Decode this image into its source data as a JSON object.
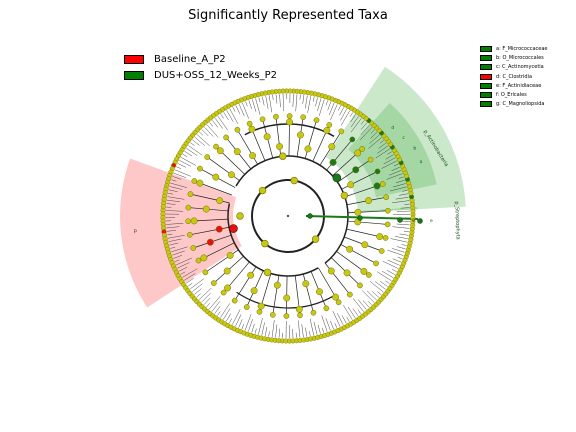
{
  "title": "Significantly Represented Taxa",
  "legend": [
    {
      "label": "Baseline_A_P2",
      "color": "#ff0000"
    },
    {
      "label": "DUS+OSS_12_Weeks_P2",
      "color": "#008000"
    }
  ],
  "clade_legend": [
    {
      "label": "a: F_Micrococcaceae",
      "color": "#008000"
    },
    {
      "label": "b: O_Micrococcales",
      "color": "#008000"
    },
    {
      "label": "c: C_Actinomycetia",
      "color": "#008000"
    },
    {
      "label": "d: C_Clostridia",
      "color": "#ff0000"
    },
    {
      "label": "e: F_Actinidiaceae",
      "color": "#008000"
    },
    {
      "label": "f: O_Ericales",
      "color": "#008000"
    },
    {
      "label": "g: C_Magnoliopsida",
      "color": "#008000"
    }
  ],
  "clade_labels": {
    "actinobacteria": "p_Actinobacteria",
    "streptophyta": "p_Streptophyta",
    "firmicutes": "p"
  },
  "inner_letters": [
    "a",
    "b",
    "c",
    "d",
    "e",
    "f",
    "g"
  ],
  "colors": {
    "node_default": "#c8c814",
    "node_edge": "#6e6e00",
    "red_node": "#e81010",
    "green_node": "#1a7a1a",
    "red_sector": "#ff9a9a",
    "green_sector": "#8ccc8c",
    "branch": "#222222"
  }
}
